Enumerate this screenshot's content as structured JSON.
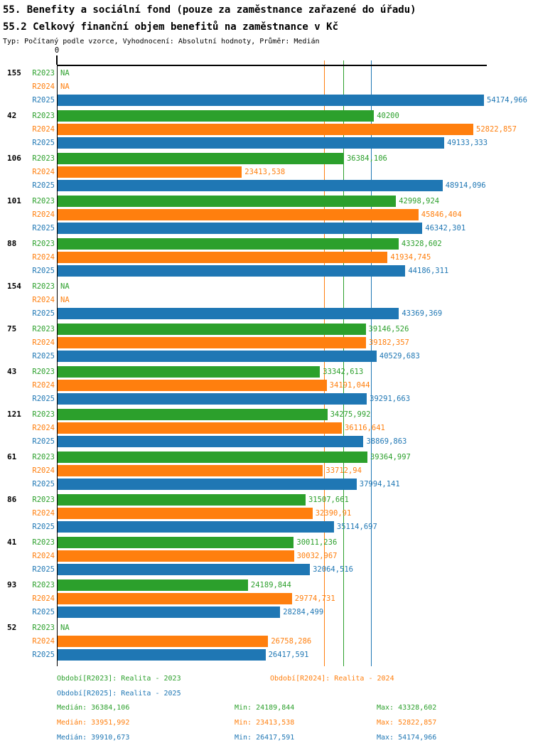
{
  "chart_data": {
    "type": "bar",
    "orientation": "horizontal",
    "title": "55. Benefity a sociální fond (pouze za zaměstnance zařazené do úřadu)",
    "subtitle": "55.2 Celkový finanční objem benefitů na zaměstnance v Kč",
    "meta": "Typ: Počítaný podle vzorce, Vyhodnocení: Absolutní hodnoty, Průměr: Medián",
    "xlabel": "",
    "ylabel": "",
    "axis": {
      "zero_label": "0",
      "min": 0,
      "max_value": 54174.966,
      "grid": false
    },
    "series": [
      {
        "id": "R2023",
        "name": "Realita - 2023",
        "color": "#2ca02c"
      },
      {
        "id": "R2024",
        "name": "Realita - 2024",
        "color": "#ff7f0e"
      },
      {
        "id": "R2025",
        "name": "Realita - 2025",
        "color": "#1f77b4"
      }
    ],
    "median_lines": [
      {
        "series": "R2024",
        "value": 33951.992,
        "color": "#ff7f0e"
      },
      {
        "series": "R2023",
        "value": 36384.106,
        "color": "#2ca02c"
      },
      {
        "series": "R2025",
        "value": 39910.673,
        "color": "#1f77b4"
      }
    ],
    "groups": [
      {
        "label": "155",
        "bars": [
          {
            "period": "R2023",
            "value": null,
            "display": "NA"
          },
          {
            "period": "R2024",
            "value": null,
            "display": "NA"
          },
          {
            "period": "R2025",
            "value": 54174.966,
            "display": "54174,966"
          }
        ]
      },
      {
        "label": "42",
        "bars": [
          {
            "period": "R2023",
            "value": 40200,
            "display": "40200"
          },
          {
            "period": "R2024",
            "value": 52822.857,
            "display": "52822,857"
          },
          {
            "period": "R2025",
            "value": 49133.333,
            "display": "49133,333"
          }
        ]
      },
      {
        "label": "106",
        "bars": [
          {
            "period": "R2023",
            "value": 36384.106,
            "display": "36384,106"
          },
          {
            "period": "R2024",
            "value": 23413.538,
            "display": "23413,538"
          },
          {
            "period": "R2025",
            "value": 48914.096,
            "display": "48914,096"
          }
        ]
      },
      {
        "label": "101",
        "bars": [
          {
            "period": "R2023",
            "value": 42998.924,
            "display": "42998,924"
          },
          {
            "period": "R2024",
            "value": 45846.404,
            "display": "45846,404"
          },
          {
            "period": "R2025",
            "value": 46342.301,
            "display": "46342,301"
          }
        ]
      },
      {
        "label": "88",
        "bars": [
          {
            "period": "R2023",
            "value": 43328.602,
            "display": "43328,602"
          },
          {
            "period": "R2024",
            "value": 41934.745,
            "display": "41934,745"
          },
          {
            "period": "R2025",
            "value": 44186.311,
            "display": "44186,311"
          }
        ]
      },
      {
        "label": "154",
        "bars": [
          {
            "period": "R2023",
            "value": null,
            "display": "NA"
          },
          {
            "period": "R2024",
            "value": null,
            "display": "NA"
          },
          {
            "period": "R2025",
            "value": 43369.369,
            "display": "43369,369"
          }
        ]
      },
      {
        "label": "75",
        "bars": [
          {
            "period": "R2023",
            "value": 39146.526,
            "display": "39146,526"
          },
          {
            "period": "R2024",
            "value": 39182.357,
            "display": "39182,357"
          },
          {
            "period": "R2025",
            "value": 40529.683,
            "display": "40529,683"
          }
        ]
      },
      {
        "label": "43",
        "bars": [
          {
            "period": "R2023",
            "value": 33342.613,
            "display": "33342,613"
          },
          {
            "period": "R2024",
            "value": 34191.044,
            "display": "34191,044"
          },
          {
            "period": "R2025",
            "value": 39291.663,
            "display": "39291,663"
          }
        ]
      },
      {
        "label": "121",
        "bars": [
          {
            "period": "R2023",
            "value": 34275.992,
            "display": "34275,992"
          },
          {
            "period": "R2024",
            "value": 36116.641,
            "display": "36116,641"
          },
          {
            "period": "R2025",
            "value": 38869.863,
            "display": "38869,863"
          }
        ]
      },
      {
        "label": "61",
        "bars": [
          {
            "period": "R2023",
            "value": 39364.997,
            "display": "39364,997"
          },
          {
            "period": "R2024",
            "value": 33712.94,
            "display": "33712,94"
          },
          {
            "period": "R2025",
            "value": 37994.141,
            "display": "37994,141"
          }
        ]
      },
      {
        "label": "86",
        "bars": [
          {
            "period": "R2023",
            "value": 31507.661,
            "display": "31507,661"
          },
          {
            "period": "R2024",
            "value": 32390.91,
            "display": "32390,91"
          },
          {
            "period": "R2025",
            "value": 35114.697,
            "display": "35114,697"
          }
        ]
      },
      {
        "label": "41",
        "bars": [
          {
            "period": "R2023",
            "value": 30011.236,
            "display": "30011,236"
          },
          {
            "period": "R2024",
            "value": 30032.967,
            "display": "30032,967"
          },
          {
            "period": "R2025",
            "value": 32064.516,
            "display": "32064,516"
          }
        ]
      },
      {
        "label": "93",
        "bars": [
          {
            "period": "R2023",
            "value": 24189.844,
            "display": "24189,844"
          },
          {
            "period": "R2024",
            "value": 29774.731,
            "display": "29774,731"
          },
          {
            "period": "R2025",
            "value": 28284.499,
            "display": "28284,499"
          }
        ]
      },
      {
        "label": "52",
        "bars": [
          {
            "period": "R2023",
            "value": null,
            "display": "NA"
          },
          {
            "period": "R2024",
            "value": 26758.286,
            "display": "26758,286"
          },
          {
            "period": "R2025",
            "value": 26417.591,
            "display": "26417,591"
          }
        ]
      }
    ]
  },
  "legend": {
    "rows": [
      [
        {
          "label": "Období[R2023]: Realita - 2023",
          "color": "#2ca02c"
        },
        {
          "label": "Období[R2024]: Realita - 2024",
          "color": "#ff7f0e"
        }
      ],
      [
        {
          "label": "Období[R2025]: Realita - 2025",
          "color": "#1f77b4"
        }
      ]
    ]
  },
  "stats": {
    "rows": [
      {
        "color": "#2ca02c",
        "items": [
          {
            "label": "Medián:",
            "value": "36384,106"
          },
          {
            "label": "Min:",
            "value": "24189,844"
          },
          {
            "label": "Max:",
            "value": "43328,602"
          }
        ]
      },
      {
        "color": "#ff7f0e",
        "items": [
          {
            "label": "Medián:",
            "value": "33951,992"
          },
          {
            "label": "Min:",
            "value": "23413,538"
          },
          {
            "label": "Max:",
            "value": "52822,857"
          }
        ]
      },
      {
        "color": "#1f77b4",
        "items": [
          {
            "label": "Medián:",
            "value": "39910,673"
          },
          {
            "label": "Min:",
            "value": "26417,591"
          },
          {
            "label": "Max:",
            "value": "54174,966"
          }
        ]
      }
    ]
  }
}
